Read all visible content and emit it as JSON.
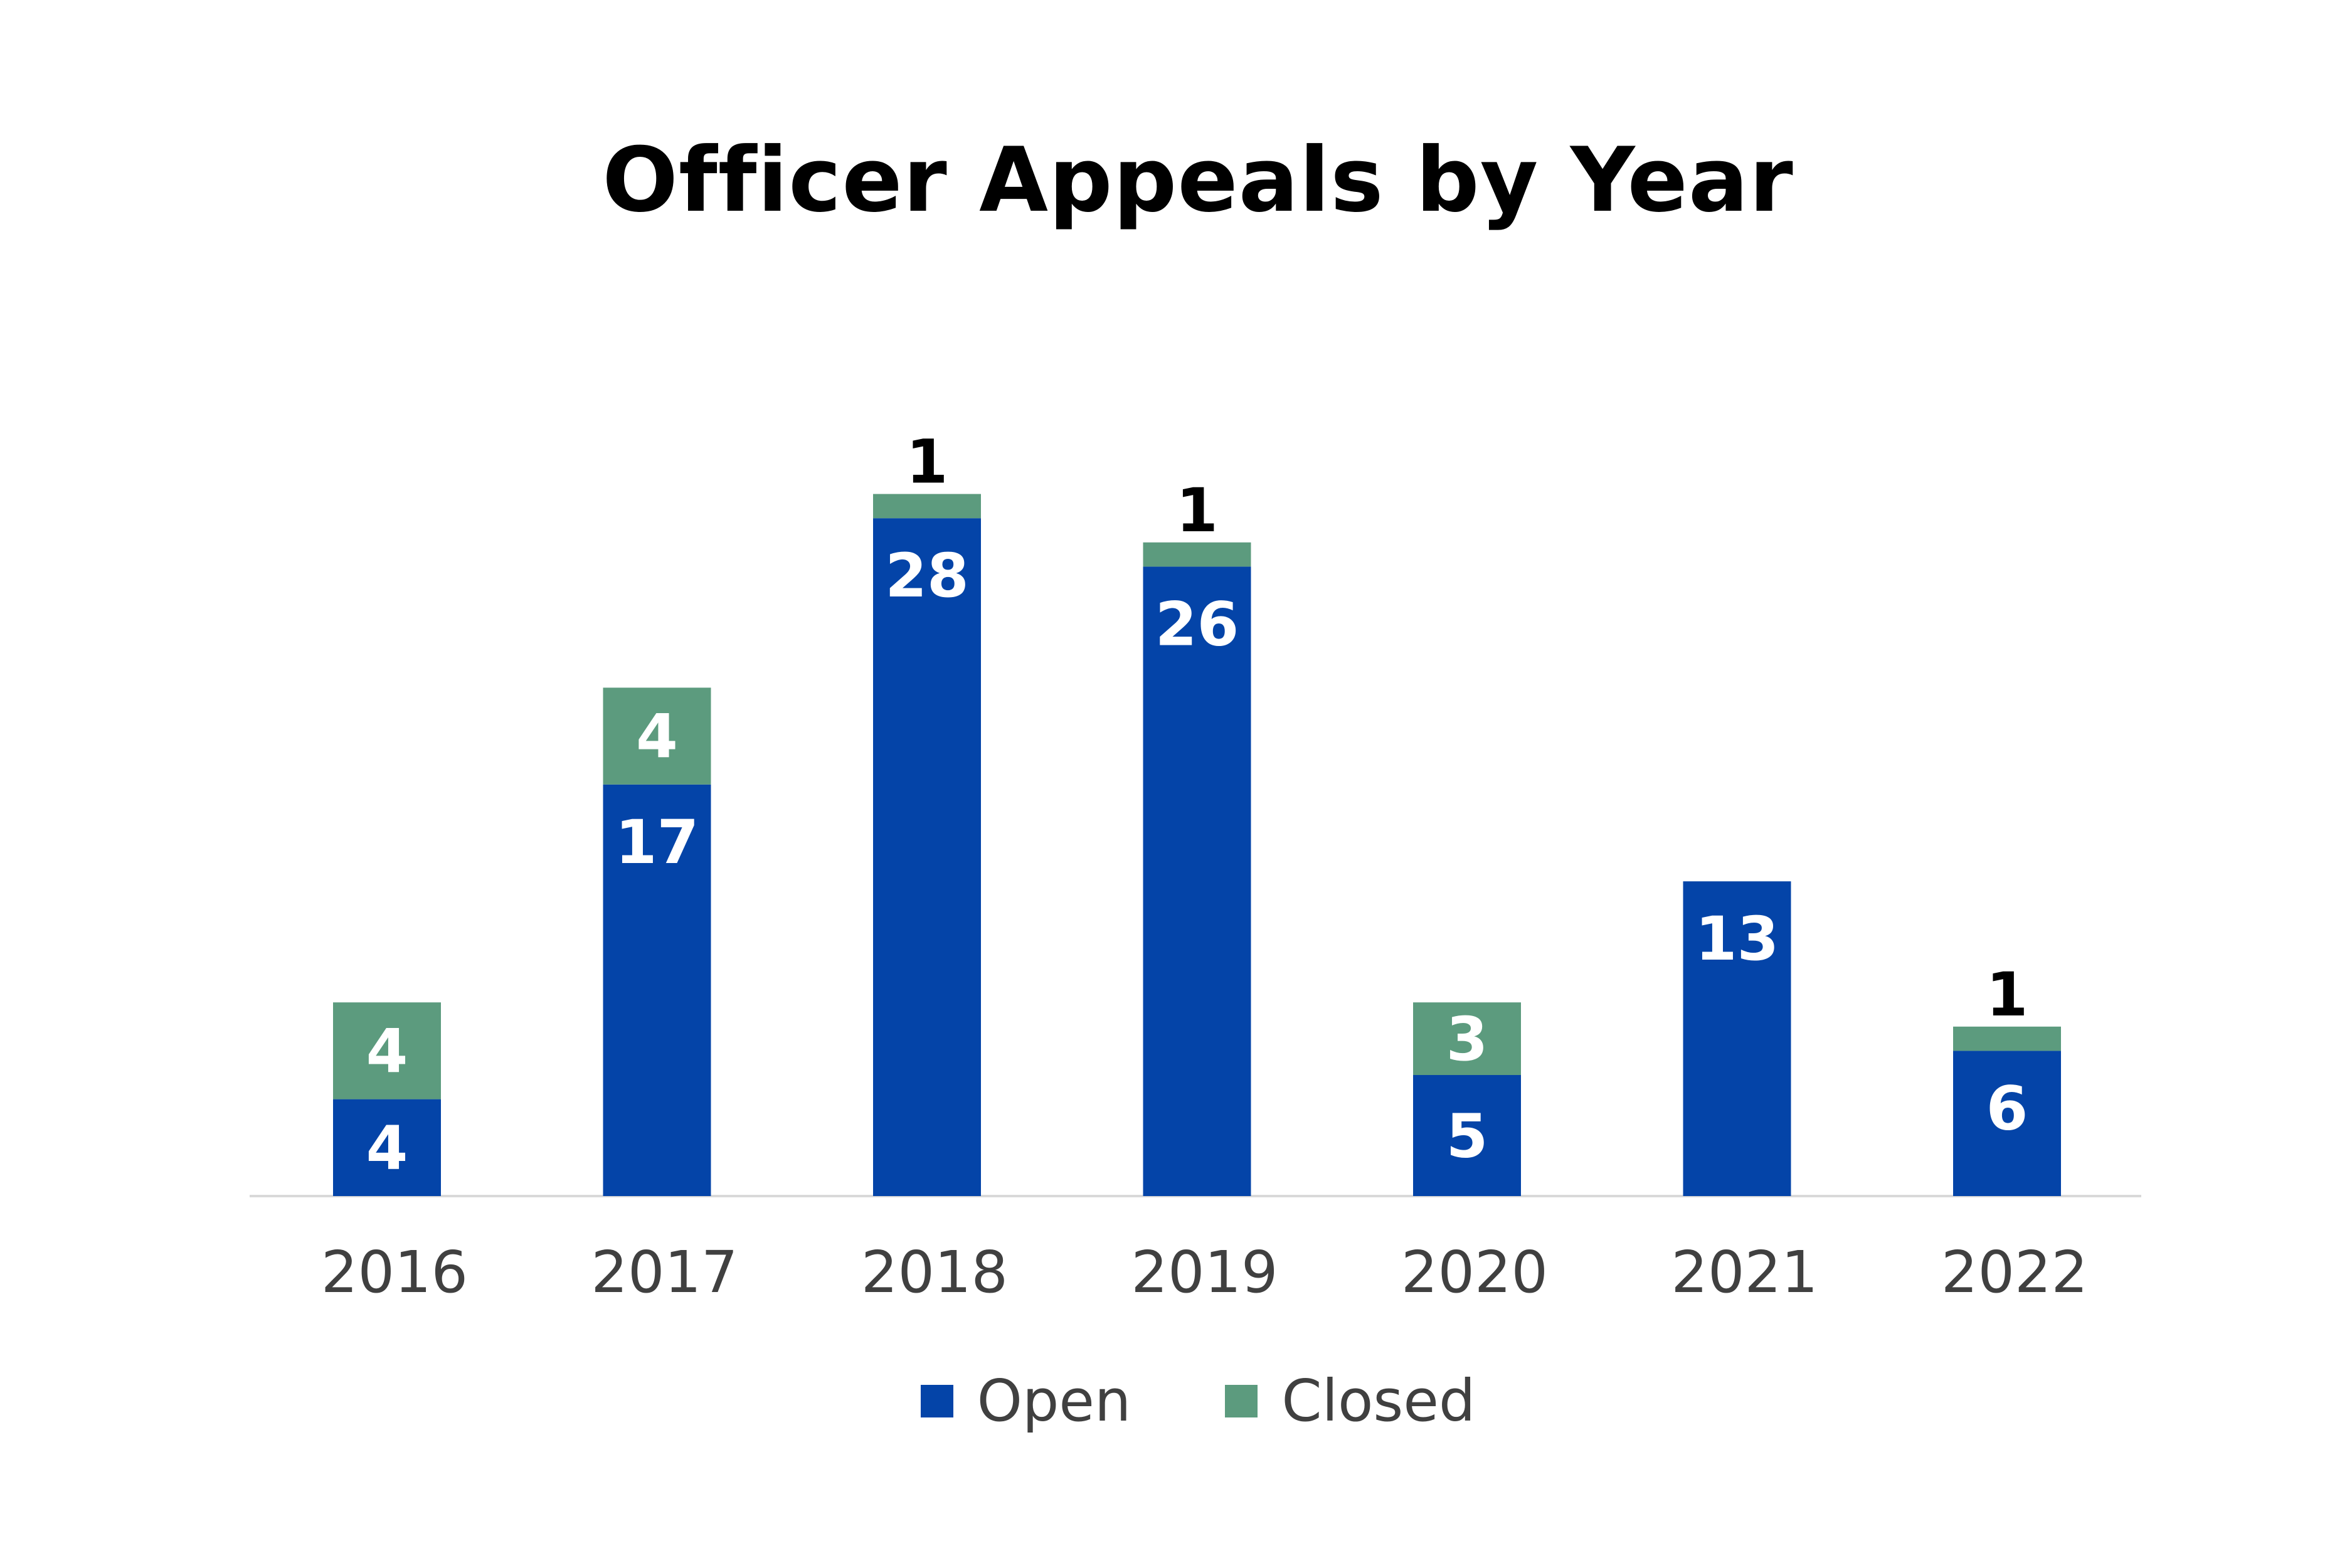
{
  "chart_data": {
    "type": "bar",
    "stacked": true,
    "title": "Officer Appeals by Year",
    "xlabel": "",
    "ylabel": "",
    "categories": [
      "2016",
      "2017",
      "2018",
      "2019",
      "2020",
      "2021",
      "2022"
    ],
    "series": [
      {
        "name": "Open",
        "color": "#0444a8",
        "label_color": "#ffffff",
        "values": [
          4,
          17,
          28,
          26,
          5,
          13,
          6
        ]
      },
      {
        "name": "Closed",
        "color": "#5c9b7e",
        "label_color": "#ffffff",
        "values": [
          4,
          4,
          1,
          1,
          3,
          0,
          1
        ]
      }
    ],
    "ylim": [
      0,
      29
    ],
    "grid": false,
    "legend_position": "bottom",
    "axis_color": "#d9d9d9",
    "tick_label_color": "#404040"
  }
}
